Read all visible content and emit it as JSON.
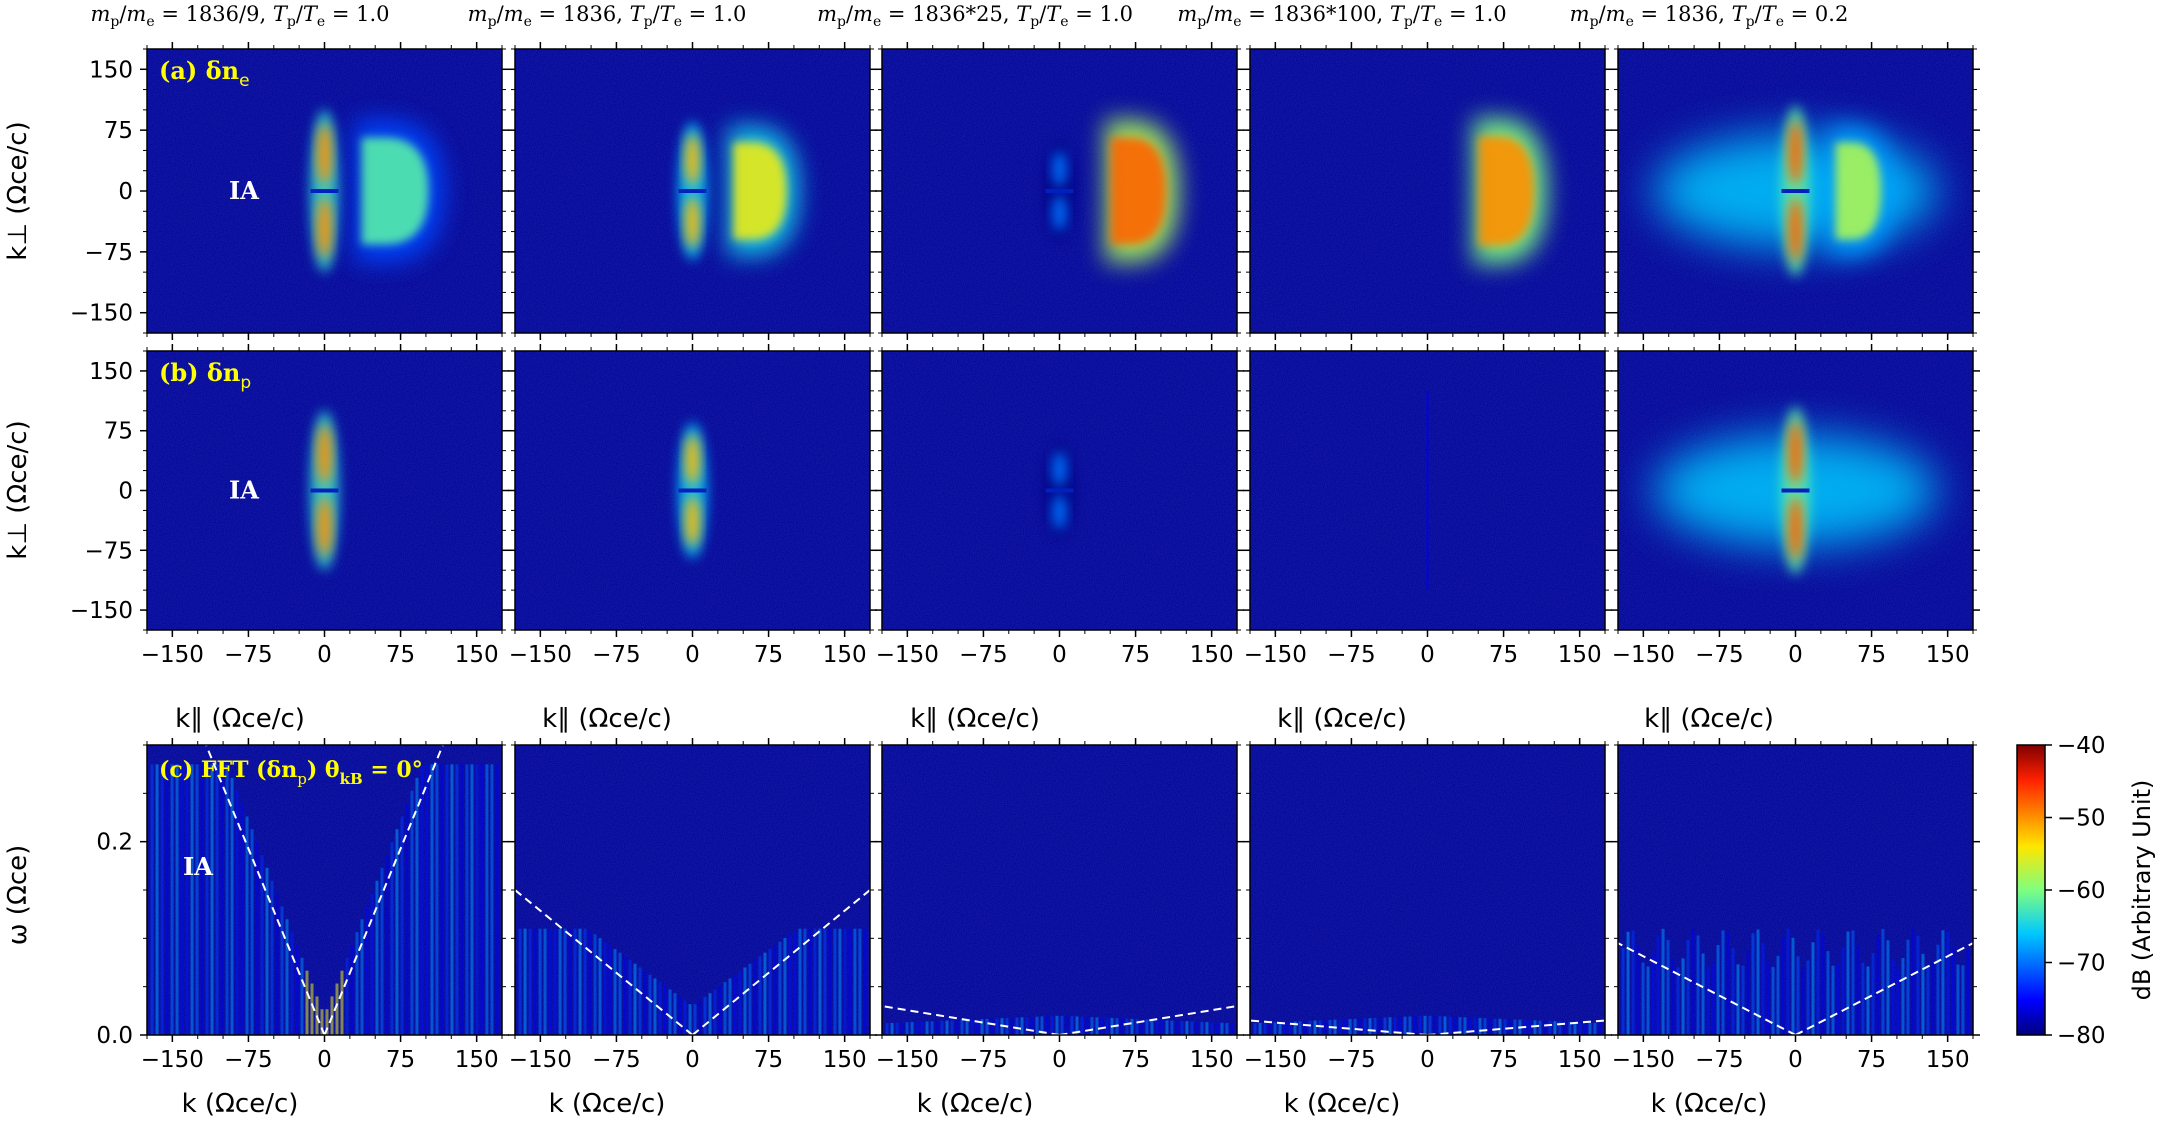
{
  "figure": {
    "column_headers": [
      {
        "ratio": "m<sub>p</sub>/m<sub>e</sub> = 1836/9",
        "temp": "T<sub>p</sub>/T<sub>e</sub> = 1.0"
      },
      {
        "ratio": "m<sub>p</sub>/m<sub>e</sub> = 1836",
        "temp": "T<sub>p</sub>/T<sub>e</sub> = 1.0"
      },
      {
        "ratio": "m<sub>p</sub>/m<sub>e</sub> = 1836*25",
        "temp": "T<sub>p</sub>/T<sub>e</sub> = 1.0"
      },
      {
        "ratio": "m<sub>p</sub>/m<sub>e</sub> = 1836*100",
        "temp": "T<sub>p</sub>/T<sub>e</sub> = 1.0"
      },
      {
        "ratio": "m<sub>p</sub>/m<sub>e</sub> = 1836",
        "temp": "T<sub>p</sub>/T<sub>e</sub> = 0.2"
      }
    ],
    "column_header_text": [
      "mp/me = 1836/9, Tp/Te = 1.0",
      "mp/me = 1836, Tp/Te = 1.0",
      "mp/me = 1836*25, Tp/Te = 1.0",
      "mp/me = 1836*100, Tp/Te = 1.0",
      "mp/me = 1836, Tp/Te = 0.2"
    ],
    "row_labels": {
      "a": "(a) δn",
      "a_sub": "e",
      "b": "(b) δn",
      "b_sub": "p",
      "c": "(c) FFT (δn",
      "c_sub": "p",
      "c_tail": ") θ",
      "c_theta_sub": "kB",
      "c_end": " = 0°"
    },
    "ia_label": "IA",
    "axis_labels": {
      "kperp": "k⊥ (Ωce/c)",
      "kpar": "k∥ (Ωce/c)",
      "omega": "ω (Ωce)",
      "k": "k (Ωce/c)"
    },
    "colorbar": {
      "label": "dB (Arbitrary Unit)",
      "ticks": [
        "−40",
        "−50",
        "−60",
        "−70",
        "−80"
      ],
      "colormap": "jet",
      "range": [
        -80,
        -40
      ]
    },
    "annotation_color": "#ffff00",
    "ia_color": "#ffffff"
  },
  "chart_data": [
    {
      "type": "heatmap",
      "row": "a",
      "column": 1,
      "quantity": "δn_e spectrum in (k∥, k⊥)",
      "xlabel": "k∥ (Ωce/c)",
      "ylabel": "k⊥ (Ωce/c)",
      "xlim": [
        -175,
        175
      ],
      "ylim": [
        -175,
        175
      ],
      "xticks": [
        -150,
        -75,
        0,
        75,
        150
      ],
      "yticks": [
        -150,
        -75,
        0,
        75,
        150
      ],
      "features": [
        {
          "kind": "vertical-band",
          "k_par": 0,
          "k_perp_extent": 100,
          "level_dB": -50
        },
        {
          "kind": "half-disk",
          "k_par_start": 30,
          "k_par_end": 118,
          "k_perp_extent": 88,
          "level_dB": -62
        }
      ],
      "annotation": "IA"
    },
    {
      "type": "heatmap",
      "row": "a",
      "column": 2,
      "xlim": [
        -175,
        175
      ],
      "ylim": [
        -175,
        175
      ],
      "features": [
        {
          "kind": "vertical-band",
          "k_par": 0,
          "k_perp_extent": 85,
          "level_dB": -52
        },
        {
          "kind": "half-disk",
          "k_par_start": 35,
          "k_par_end": 105,
          "k_perp_extent": 80,
          "level_dB": -55
        }
      ]
    },
    {
      "type": "heatmap",
      "row": "a",
      "column": 3,
      "xlim": [
        -175,
        175
      ],
      "ylim": [
        -175,
        175
      ],
      "features": [
        {
          "kind": "vertical-band",
          "k_par": 0,
          "k_perp_extent": 60,
          "level_dB": -70
        },
        {
          "kind": "half-disk",
          "k_par_start": 45,
          "k_par_end": 118,
          "k_perp_extent": 88,
          "level_dB": -48
        }
      ]
    },
    {
      "type": "heatmap",
      "row": "a",
      "column": 4,
      "xlim": [
        -175,
        175
      ],
      "ylim": [
        -175,
        175
      ],
      "features": [
        {
          "kind": "half-disk",
          "k_par_start": 45,
          "k_par_end": 118,
          "k_perp_extent": 90,
          "level_dB": -50
        }
      ]
    },
    {
      "type": "heatmap",
      "row": "a",
      "column": 5,
      "xlim": [
        -175,
        175
      ],
      "ylim": [
        -175,
        175
      ],
      "features": [
        {
          "kind": "vertical-band",
          "k_par": 0,
          "k_perp_extent": 105,
          "level_dB": -48
        },
        {
          "kind": "half-disk",
          "k_par_start": 35,
          "k_par_end": 95,
          "k_perp_extent": 80,
          "level_dB": -58
        },
        {
          "kind": "wings",
          "k_par_extent": 140,
          "level_dB": -66
        }
      ]
    },
    {
      "type": "heatmap",
      "row": "b",
      "column": 1,
      "quantity": "δn_p spectrum in (k∥, k⊥)",
      "xlim": [
        -175,
        175
      ],
      "ylim": [
        -175,
        175
      ],
      "features": [
        {
          "kind": "vertical-band",
          "k_par": 0,
          "k_perp_extent": 100,
          "level_dB": -50
        }
      ],
      "annotation": "IA"
    },
    {
      "type": "heatmap",
      "row": "b",
      "column": 2,
      "xlim": [
        -175,
        175
      ],
      "ylim": [
        -175,
        175
      ],
      "features": [
        {
          "kind": "vertical-band",
          "k_par": 0,
          "k_perp_extent": 85,
          "level_dB": -52
        }
      ]
    },
    {
      "type": "heatmap",
      "row": "b",
      "column": 3,
      "xlim": [
        -175,
        175
      ],
      "ylim": [
        -175,
        175
      ],
      "features": [
        {
          "kind": "vertical-band",
          "k_par": 0,
          "k_perp_extent": 60,
          "level_dB": -70
        }
      ]
    },
    {
      "type": "heatmap",
      "row": "b",
      "column": 4,
      "xlim": [
        -175,
        175
      ],
      "ylim": [
        -175,
        175
      ],
      "features": [
        {
          "kind": "thin-line",
          "k_par": 0,
          "level_dB": -76
        }
      ]
    },
    {
      "type": "heatmap",
      "row": "b",
      "column": 5,
      "xlim": [
        -175,
        175
      ],
      "ylim": [
        -175,
        175
      ],
      "features": [
        {
          "kind": "vertical-band",
          "k_par": 0,
          "k_perp_extent": 105,
          "level_dB": -48
        },
        {
          "kind": "wings",
          "k_par_extent": 140,
          "level_dB": -66
        }
      ]
    },
    {
      "type": "heatmap",
      "row": "c",
      "column": 1,
      "quantity": "FFT(δn_p), θ_kB = 0°",
      "xlabel": "k (Ωce/c)",
      "ylabel": "ω (Ωce)",
      "xlim": [
        -175,
        175
      ],
      "ylim": [
        0,
        0.3
      ],
      "xticks": [
        -150,
        -75,
        0,
        75,
        150
      ],
      "yticks": [
        0.0,
        0.2
      ],
      "dispersion_line_slope": 0.00257,
      "annotation": "IA"
    },
    {
      "type": "heatmap",
      "row": "c",
      "column": 2,
      "xlim": [
        -175,
        175
      ],
      "ylim": [
        0,
        0.3
      ],
      "dispersion_line_slope": 0.000857
    },
    {
      "type": "heatmap",
      "row": "c",
      "column": 3,
      "xlim": [
        -175,
        175
      ],
      "ylim": [
        0,
        0.3
      ],
      "dispersion_line_slope": 0.000171
    },
    {
      "type": "heatmap",
      "row": "c",
      "column": 4,
      "xlim": [
        -175,
        175
      ],
      "ylim": [
        0,
        0.3
      ],
      "dispersion_line_slope": 8.57e-05
    },
    {
      "type": "heatmap",
      "row": "c",
      "column": 5,
      "xlim": [
        -175,
        175
      ],
      "ylim": [
        0,
        0.3
      ],
      "dispersion_line_slope": 0.000543
    }
  ]
}
